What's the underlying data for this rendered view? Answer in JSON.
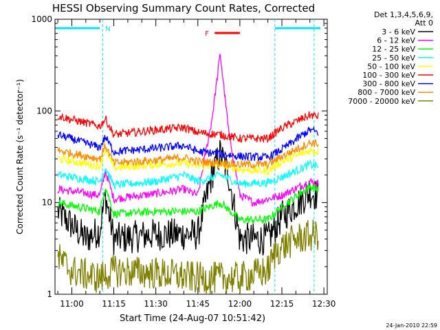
{
  "chart_data": {
    "type": "line",
    "title": "HESSI Observing Summary Count Rates, Corrected",
    "xlabel": "Start Time (24-Aug-07 10:51:42)",
    "ylabel": "Corrected Count Rate (s⁻¹ detector⁻¹)",
    "yscale": "log",
    "ylim": [
      1,
      1000
    ],
    "xlim_minutes": [
      10.9,
      12.52
    ],
    "x_ticks": [
      "11:00",
      "11:15",
      "11:30",
      "11:45",
      "12:00",
      "12:15",
      "12:30"
    ],
    "y_ticks": [
      "1",
      "10",
      "100",
      "1000"
    ],
    "legend_header": [
      "Det 1,3,4,5,6,9,",
      "Att 0"
    ],
    "legend_position": "right",
    "timestamp": "24-Jan-2010 22:59",
    "flag_labels": [
      {
        "label": "N",
        "color": "#00e5ee"
      },
      {
        "label": "F",
        "color": "#ff0000"
      }
    ],
    "series": [
      {
        "name": "3 - 6 keV",
        "color": "#000000",
        "x": [
          "10:55",
          "11:05",
          "11:10",
          "11:12",
          "11:15",
          "11:30",
          "11:45",
          "11:50",
          "11:53",
          "11:56",
          "12:00",
          "12:10",
          "12:15",
          "12:25",
          "12:28"
        ],
        "values": [
          8,
          4,
          5,
          12,
          4,
          4.5,
          4.5,
          20,
          35,
          20,
          4,
          4,
          7,
          13,
          12
        ]
      },
      {
        "name": "6 - 12 keV",
        "color": "#ff00ff",
        "x": [
          "10:55",
          "11:10",
          "11:12",
          "11:15",
          "11:30",
          "11:40",
          "11:45",
          "11:50",
          "11:53",
          "11:56",
          "12:00",
          "12:05",
          "12:15",
          "12:25",
          "12:28"
        ],
        "values": [
          14,
          12,
          22,
          11,
          12.5,
          14,
          12,
          80,
          420,
          60,
          12,
          10,
          12,
          17,
          16
        ]
      },
      {
        "name": "12 - 25 keV",
        "color": "#00ff00",
        "x": [
          "10:55",
          "11:10",
          "11:12",
          "11:15",
          "11:30",
          "11:45",
          "11:53",
          "12:00",
          "12:10",
          "12:15",
          "12:25",
          "12:28"
        ],
        "values": [
          10,
          8,
          15,
          7.5,
          8,
          8,
          10,
          6.5,
          6.5,
          9,
          15,
          14
        ]
      },
      {
        "name": "25 - 50 keV",
        "color": "#00ffff",
        "x": [
          "10:55",
          "11:10",
          "11:12",
          "11:15",
          "11:30",
          "11:40",
          "11:45",
          "11:53",
          "12:00",
          "12:10",
          "12:15",
          "12:25",
          "12:28"
        ],
        "values": [
          20,
          17,
          24,
          15.5,
          17,
          20,
          17,
          20,
          16,
          16.5,
          19,
          26,
          25
        ]
      },
      {
        "name": "50 - 100 keV",
        "color": "#ffff00",
        "x": [
          "10:55",
          "11:10",
          "11:12",
          "11:15",
          "11:30",
          "11:40",
          "11:45",
          "11:53",
          "12:00",
          "12:10",
          "12:15",
          "12:25",
          "12:28"
        ],
        "values": [
          30,
          25,
          38,
          24,
          26,
          27,
          25,
          26,
          23,
          22,
          28,
          37,
          36
        ]
      },
      {
        "name": "100 - 300 keV",
        "color": "#ff0000",
        "x": [
          "10:55",
          "11:10",
          "11:12",
          "11:15",
          "11:30",
          "11:40",
          "11:45",
          "11:53",
          "12:00",
          "12:10",
          "12:15",
          "12:25",
          "12:28"
        ],
        "values": [
          88,
          68,
          82,
          55,
          62,
          66,
          58,
          55,
          50,
          50,
          65,
          90,
          87
        ]
      },
      {
        "name": "300 - 800 keV",
        "color": "#0000ff",
        "x": [
          "10:55",
          "11:10",
          "11:12",
          "11:15",
          "11:30",
          "11:40",
          "11:45",
          "11:53",
          "12:00",
          "12:10",
          "12:15",
          "12:25",
          "12:28"
        ],
        "values": [
          55,
          40,
          52,
          36,
          39,
          42,
          36,
          34,
          32,
          31,
          38,
          62,
          58
        ]
      },
      {
        "name": "800 - 7000 keV",
        "color": "#ff8c00",
        "x": [
          "10:55",
          "11:10",
          "11:12",
          "11:15",
          "11:30",
          "11:40",
          "11:45",
          "11:53",
          "12:00",
          "12:10",
          "12:15",
          "12:25",
          "12:28"
        ],
        "values": [
          37,
          30,
          42,
          27,
          29,
          31,
          28,
          27,
          26,
          26,
          32,
          45,
          44
        ]
      },
      {
        "name": "7000 - 20000 keV",
        "color": "#808000",
        "x": [
          "10:55",
          "11:00",
          "11:10",
          "11:15",
          "11:30",
          "11:45",
          "12:00",
          "12:10",
          "12:13",
          "12:20",
          "12:28"
        ],
        "values": [
          2.5,
          1.8,
          1.5,
          1.8,
          1.7,
          1.5,
          1.5,
          1.8,
          3,
          4,
          4.5
        ]
      }
    ]
  }
}
